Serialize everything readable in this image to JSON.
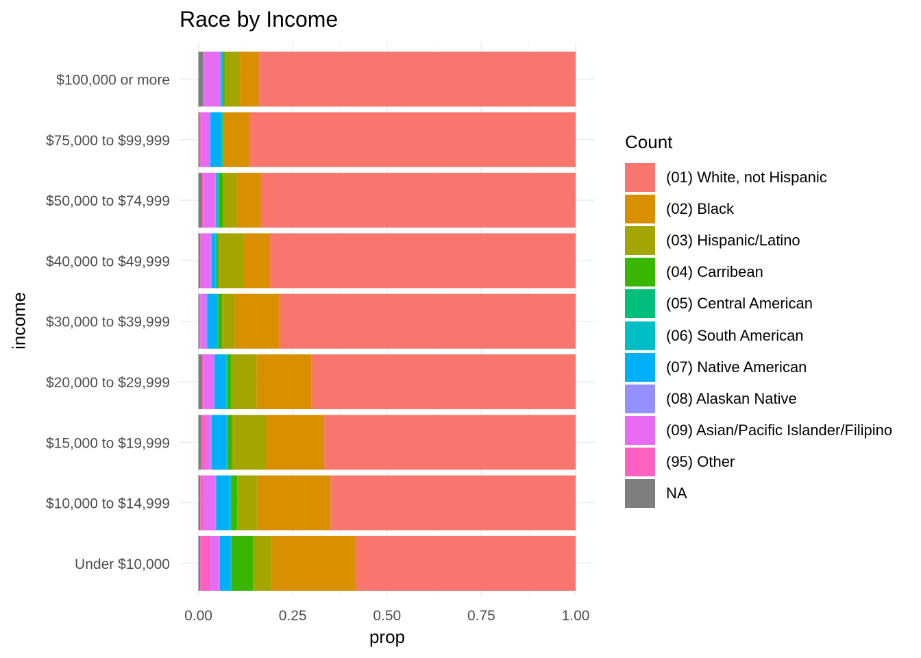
{
  "chart_data": {
    "type": "bar",
    "orientation": "horizontal",
    "stacked": true,
    "title": "Race by Income",
    "xlabel": "prop",
    "ylabel": "income",
    "xlim": [
      0,
      1
    ],
    "xticks": [
      0,
      0.25,
      0.5,
      0.75,
      1
    ],
    "xtick_labels": [
      "0.00",
      "0.25",
      "0.50",
      "0.75",
      "1.00"
    ],
    "grid": true,
    "legend_title": "Count",
    "legend_position": "right",
    "categories": [
      "$100,000 or more",
      "$75,000 to $99,999",
      "$50,000 to $74,999",
      "$40,000 to $49,999",
      "$30,000 to $39,999",
      "$20,000 to $29,999",
      "$15,000 to $19,999",
      "$10,000 to $14,999",
      "Under $10,000"
    ],
    "series": [
      {
        "name": "NA",
        "color": "#7F7F7F",
        "values": [
          0.012,
          0.004,
          0.01,
          0.005,
          0.003,
          0.01,
          0.008,
          0.005,
          0.005
        ]
      },
      {
        "name": "(95) Other",
        "color": "#FF61C3",
        "values": [
          0.003,
          0.003,
          0.003,
          0.003,
          0.002,
          0.003,
          0.012,
          0.01,
          0.025
        ]
      },
      {
        "name": "(09) Asian/Pacific Islander/Filipino",
        "color": "#E76BF3",
        "values": [
          0.042,
          0.023,
          0.032,
          0.025,
          0.016,
          0.028,
          0.013,
          0.03,
          0.025
        ]
      },
      {
        "name": "(08) Alaskan Native",
        "color": "#9590FF",
        "values": [
          0.002,
          0.002,
          0.002,
          0.002,
          0.002,
          0.002,
          0.002,
          0.002,
          0.002
        ]
      },
      {
        "name": "(07) Native American",
        "color": "#00B0F6",
        "values": [
          0.003,
          0.028,
          0.004,
          0.01,
          0.026,
          0.03,
          0.04,
          0.037,
          0.028
        ]
      },
      {
        "name": "(06) South American",
        "color": "#00BFC4",
        "values": [
          0.002,
          0.002,
          0.002,
          0.002,
          0.002,
          0.002,
          0.002,
          0.002,
          0.002
        ]
      },
      {
        "name": "(05) Central American",
        "color": "#00BF7D",
        "values": [
          0.002,
          0.002,
          0.002,
          0.002,
          0.002,
          0.002,
          0.002,
          0.002,
          0.002
        ]
      },
      {
        "name": "(04) Carribean",
        "color": "#39B600",
        "values": [
          0.003,
          0.002,
          0.01,
          0.004,
          0.01,
          0.01,
          0.01,
          0.015,
          0.056
        ]
      },
      {
        "name": "(03) Hispanic/Latino",
        "color": "#A3A500",
        "values": [
          0.041,
          0.001,
          0.036,
          0.067,
          0.033,
          0.067,
          0.09,
          0.052,
          0.048
        ]
      },
      {
        "name": "(02) Black",
        "color": "#D89000",
        "values": [
          0.05,
          0.069,
          0.065,
          0.07,
          0.118,
          0.145,
          0.155,
          0.195,
          0.225
        ]
      },
      {
        "name": "(01) White, not Hispanic",
        "color": "#F8766D",
        "values": [
          0.84,
          0.864,
          0.834,
          0.81,
          0.786,
          0.701,
          0.666,
          0.65,
          0.582
        ]
      }
    ],
    "legend_order": [
      "(01) White, not Hispanic",
      "(02) Black",
      "(03) Hispanic/Latino",
      "(04) Carribean",
      "(05) Central American",
      "(06) South American",
      "(07) Native American",
      "(08) Alaskan Native",
      "(09) Asian/Pacific Islander/Filipino",
      "(95) Other",
      "NA"
    ]
  }
}
